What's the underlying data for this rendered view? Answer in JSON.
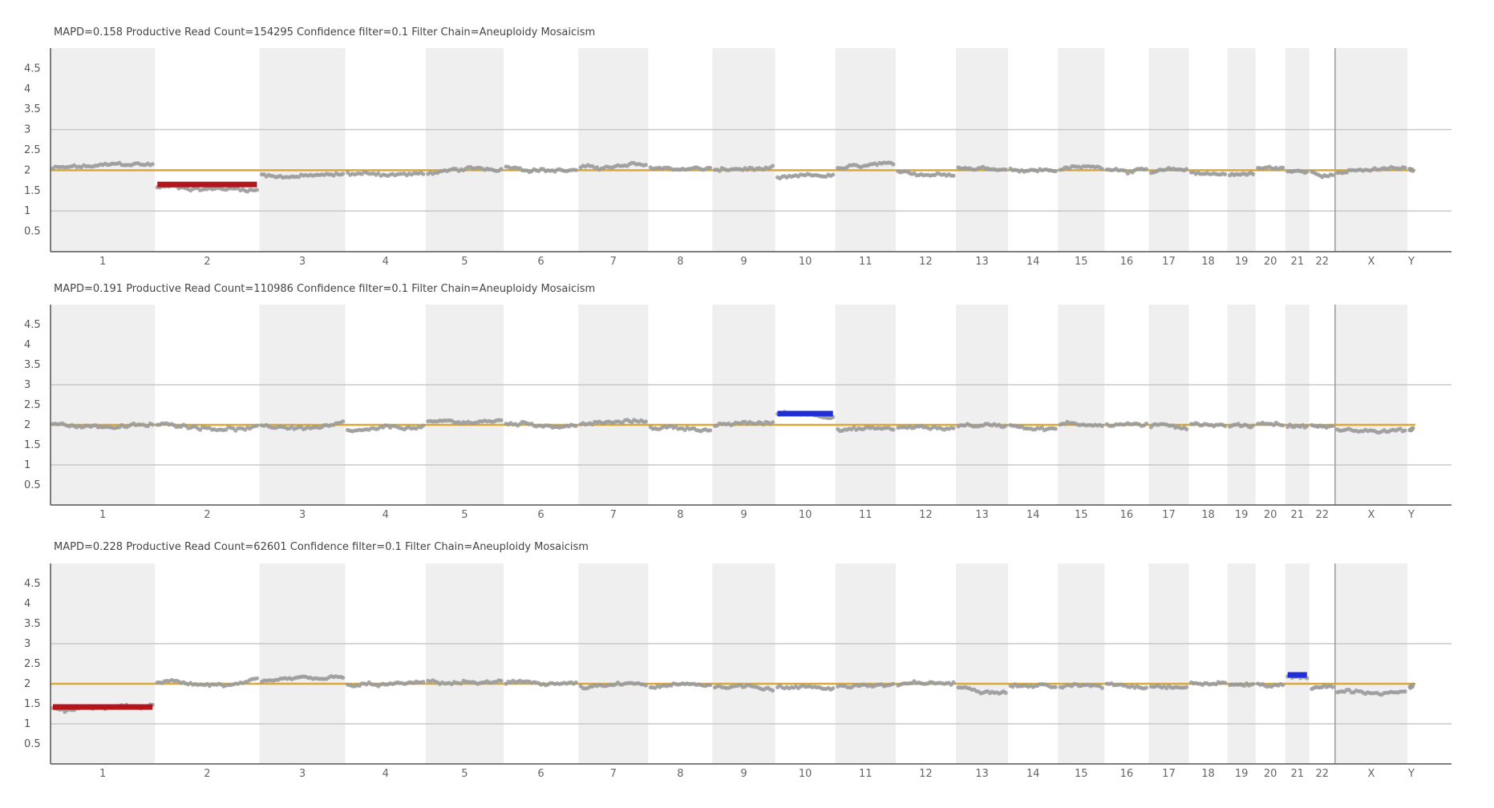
{
  "colors": {
    "band": "#efefef",
    "points": "#9a9a9a",
    "baseline": "#d8a838",
    "gain": "#1f2fd6",
    "loss": "#b3151b",
    "gridline": "#c8c8c8",
    "axis": "#555555"
  },
  "chart_data": [
    {
      "type": "scatter",
      "title": "MAPD=0.158 Productive Read Count=154295 Confidence filter=0.1 Filter Chain=Aneuploidy Mosaicism",
      "xlabel": "",
      "ylabel": "",
      "ylim": [
        0,
        5
      ],
      "yticks": [
        "0.5",
        "1",
        "1.5",
        "2",
        "2.5",
        "3",
        "3.5",
        "4",
        "4.5"
      ],
      "reference_lines": [
        1,
        3
      ],
      "baseline": 2,
      "chromosomes": [
        "1",
        "2",
        "3",
        "4",
        "5",
        "6",
        "7",
        "8",
        "9",
        "10",
        "11",
        "12",
        "13",
        "14",
        "15",
        "16",
        "17",
        "18",
        "19",
        "20",
        "21",
        "22",
        "X",
        "Y"
      ],
      "levels": [
        2.05,
        1.6,
        1.9,
        1.92,
        1.95,
        2.1,
        2.05,
        2.05,
        2.0,
        1.8,
        2.05,
        2.0,
        2.05,
        2.05,
        2.05,
        2.05,
        1.95,
        1.95,
        1.9,
        2.05,
        1.95,
        1.95,
        1.95,
        2.0
      ],
      "segments": [
        {
          "chromosome": "2",
          "value": 1.65,
          "kind": "loss"
        }
      ],
      "grid": false
    },
    {
      "type": "scatter",
      "title": "MAPD=0.191 Productive Read Count=110986 Confidence filter=0.1 Filter Chain=Aneuploidy Mosaicism",
      "xlabel": "",
      "ylabel": "",
      "ylim": [
        0,
        5
      ],
      "yticks": [
        "0.5",
        "1",
        "1.5",
        "2",
        "2.5",
        "3",
        "3.5",
        "4",
        "4.5"
      ],
      "reference_lines": [
        1,
        3
      ],
      "baseline": 2,
      "chromosomes": [
        "1",
        "2",
        "3",
        "4",
        "5",
        "6",
        "7",
        "8",
        "9",
        "10",
        "11",
        "12",
        "13",
        "14",
        "15",
        "16",
        "17",
        "18",
        "19",
        "20",
        "21",
        "22",
        "X",
        "Y"
      ],
      "levels": [
        2.0,
        2.0,
        1.95,
        1.85,
        2.05,
        2.05,
        2.05,
        1.95,
        1.95,
        2.3,
        1.85,
        1.9,
        2.0,
        2.0,
        2.0,
        2.0,
        1.95,
        2.05,
        1.95,
        2.05,
        1.95,
        1.95,
        1.85,
        1.9
      ],
      "segments": [
        {
          "chromosome": "10",
          "value": 2.28,
          "kind": "gain"
        }
      ],
      "grid": false
    },
    {
      "type": "scatter",
      "title": "MAPD=0.228 Productive Read Count=62601 Confidence filter=0.1 Filter Chain=Aneuploidy Mosaicism",
      "xlabel": "",
      "ylabel": "",
      "ylim": [
        0,
        5
      ],
      "yticks": [
        "0.5",
        "1",
        "1.5",
        "2",
        "2.5",
        "3",
        "3.5",
        "4",
        "4.5"
      ],
      "reference_lines": [
        1,
        3
      ],
      "baseline": 2,
      "chromosomes": [
        "1",
        "2",
        "3",
        "4",
        "5",
        "6",
        "7",
        "8",
        "9",
        "10",
        "11",
        "12",
        "13",
        "14",
        "15",
        "16",
        "17",
        "18",
        "19",
        "20",
        "21",
        "22",
        "X",
        "Y"
      ],
      "levels": [
        1.35,
        2.05,
        2.05,
        1.95,
        2.05,
        2.0,
        1.9,
        1.9,
        1.95,
        1.9,
        1.95,
        1.95,
        1.9,
        1.95,
        1.9,
        2.0,
        1.95,
        2.0,
        2.0,
        2.0,
        2.2,
        1.9,
        1.8,
        1.9
      ],
      "segments": [
        {
          "chromosome": "1",
          "value": 1.42,
          "kind": "loss"
        },
        {
          "chromosome": "21",
          "value": 2.22,
          "kind": "gain"
        }
      ],
      "grid": false
    }
  ]
}
